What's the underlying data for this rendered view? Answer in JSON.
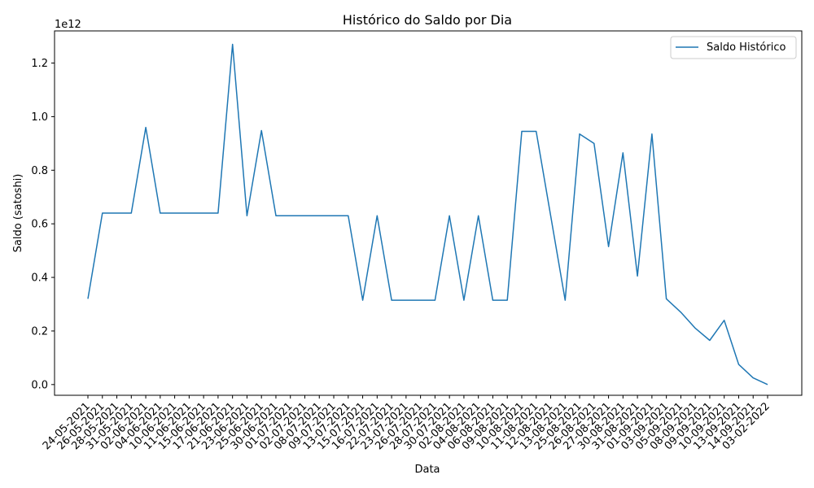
{
  "chart_data": {
    "type": "line",
    "title": "Histórico do Saldo por Dia",
    "xlabel": "Data",
    "ylabel": "Saldo (satoshi)",
    "y_offset_label": "1e12",
    "ylim": [
      -0.04,
      1.32
    ],
    "y_ticks": [
      "0.0",
      "0.2",
      "0.4",
      "0.6",
      "0.8",
      "1.0",
      "1.2"
    ],
    "y_tick_values": [
      0.0,
      0.2,
      0.4,
      0.6,
      0.8,
      1.0,
      1.2
    ],
    "legend": "top-right",
    "grid": false,
    "color": "#1f77b4",
    "categories": [
      "24-05-2021",
      "26-05-2021",
      "28-05-2021",
      "31-05-2021",
      "02-06-2021",
      "04-06-2021",
      "10-06-2021",
      "11-06-2021",
      "15-06-2021",
      "17-06-2021",
      "21-06-2021",
      "23-06-2021",
      "25-06-2021",
      "30-06-2021",
      "01-07-2021",
      "02-07-2021",
      "08-07-2021",
      "09-07-2021",
      "13-07-2021",
      "15-07-2021",
      "16-07-2021",
      "22-07-2021",
      "23-07-2021",
      "26-07-2021",
      "28-07-2021",
      "30-07-2021",
      "02-08-2021",
      "04-08-2021",
      "06-08-2021",
      "09-08-2021",
      "10-08-2021",
      "11-08-2021",
      "12-08-2021",
      "13-08-2021",
      "25-08-2021",
      "26-08-2021",
      "27-08-2021",
      "30-08-2021",
      "31-08-2021",
      "01-09-2021",
      "03-09-2021",
      "05-09-2021",
      "08-09-2021",
      "09-09-2021",
      "10-09-2021",
      "13-09-2021",
      "14-09-2021",
      "03-02-2022"
    ],
    "series": [
      {
        "name": "Saldo Histórico",
        "values": [
          0.32,
          0.64,
          0.64,
          0.64,
          0.96,
          0.64,
          0.64,
          0.64,
          0.64,
          0.64,
          1.27,
          0.63,
          0.948,
          0.63,
          0.63,
          0.63,
          0.63,
          0.63,
          0.63,
          0.315,
          0.63,
          0.315,
          0.315,
          0.315,
          0.315,
          0.63,
          0.315,
          0.63,
          0.315,
          0.315,
          0.945,
          0.945,
          0.63,
          0.315,
          0.935,
          0.9,
          0.515,
          0.865,
          0.405,
          0.935,
          0.32,
          0.27,
          0.21,
          0.165,
          0.24,
          0.075,
          0.025,
          0.0
        ]
      }
    ]
  }
}
